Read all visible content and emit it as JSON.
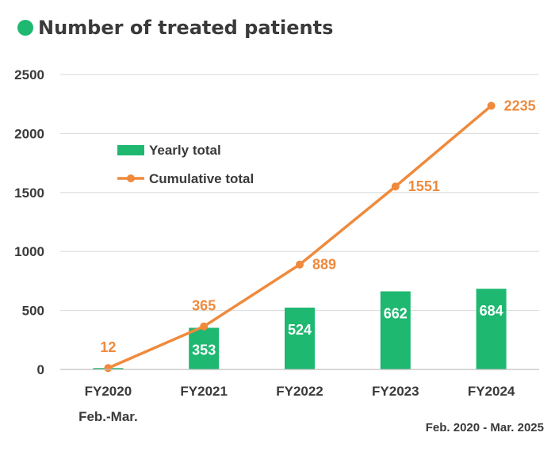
{
  "title": "Number of treated patients",
  "period_note": "Feb. 2020 - Mar. 2025",
  "colors": {
    "bar": "#1eb871",
    "line": "#ef8a3c",
    "grid": "#d9d9d9",
    "text": "#3a3a3a"
  },
  "chart_data": {
    "type": "bar",
    "categories": [
      "FY2020",
      "FY2021",
      "FY2022",
      "FY2023",
      "FY2024"
    ],
    "category_sublabels": [
      "Feb.-Mar.",
      "",
      "",
      "",
      ""
    ],
    "series": [
      {
        "name": "Yearly total",
        "type": "bar",
        "values": [
          12,
          353,
          524,
          662,
          684
        ]
      },
      {
        "name": "Cumulative total",
        "type": "line",
        "values": [
          12,
          365,
          889,
          1551,
          2235
        ]
      }
    ],
    "y_ticks": [
      0,
      500,
      1000,
      1500,
      2000,
      2500
    ],
    "ylim": [
      0,
      2500
    ],
    "grid": true,
    "legend_position": "top-left"
  }
}
